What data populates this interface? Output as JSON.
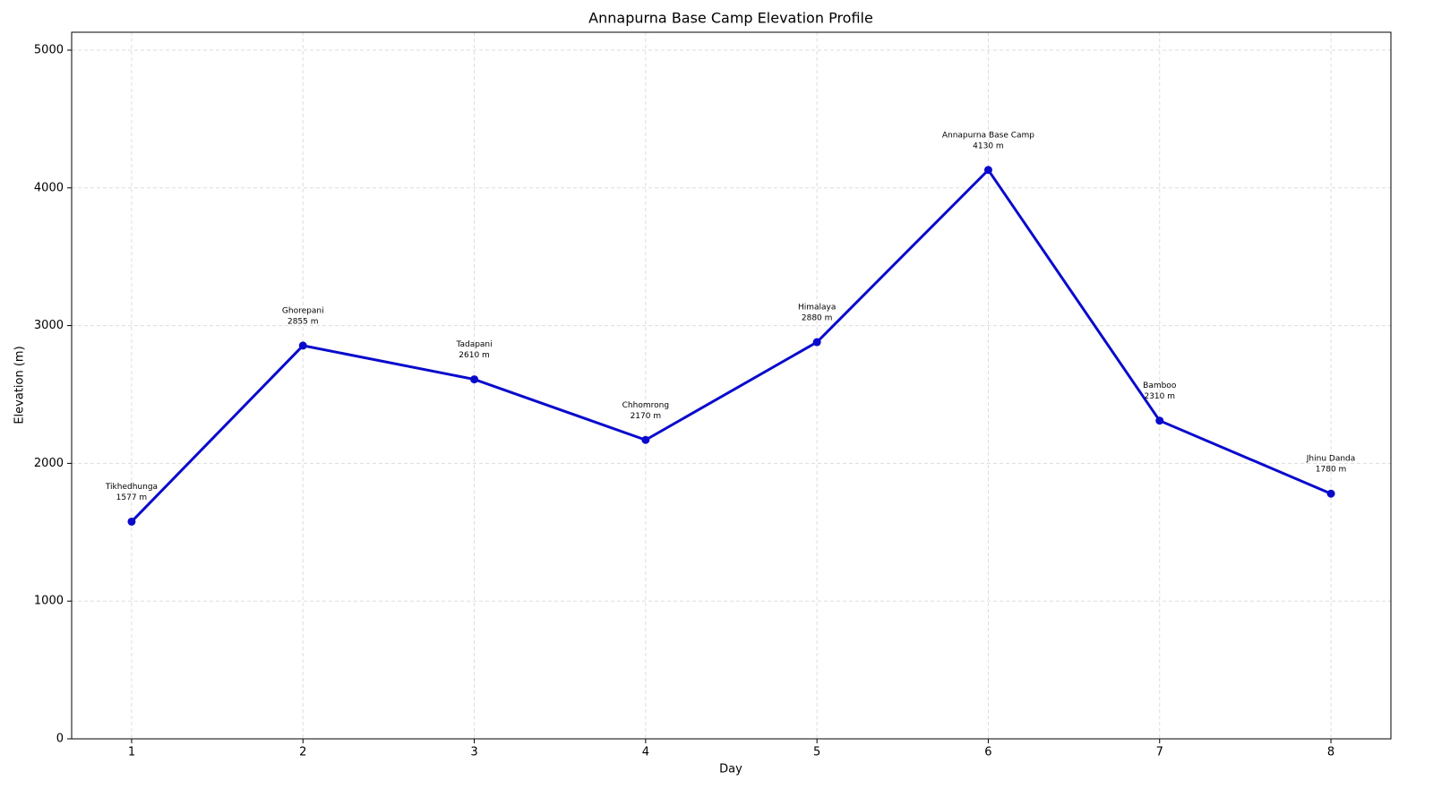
{
  "chart_data": {
    "type": "line",
    "title": "Annapurna Base Camp Elevation Profile",
    "x_label": "Day",
    "y_label": "Elevation (m)",
    "x": [
      1,
      2,
      3,
      4,
      5,
      6,
      7,
      8
    ],
    "values": [
      1577,
      2855,
      2610,
      2170,
      2880,
      4130,
      2310,
      1780
    ],
    "value_labels": [
      "1577 m",
      "2855 m",
      "2610 m",
      "2170 m",
      "2880 m",
      "4130 m",
      "2310 m",
      "1780 m"
    ],
    "point_labels": [
      "Tikhedhunga",
      "Ghorepani",
      "Tadapani",
      "Chhomrong",
      "Himalaya",
      "Annapurna Base Camp",
      "Bamboo",
      "Jhinu Danda"
    ],
    "color": "#0a0acc",
    "xlim": [
      0.65,
      8.35
    ],
    "xticks": [
      1,
      2,
      3,
      4,
      5,
      6,
      7,
      8
    ],
    "ylim": [
      0,
      5130
    ],
    "yticks": [
      0,
      1000,
      2000,
      3000,
      4000,
      5000
    ],
    "grid": true
  }
}
